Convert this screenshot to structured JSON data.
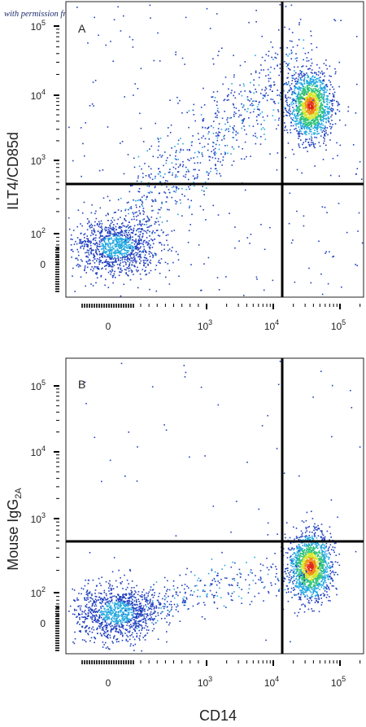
{
  "watermark": "with permission from R & D Systems",
  "chart_data": [
    {
      "type": "scatter",
      "panel_label": "A",
      "ylabel": "ILT4/CD85d",
      "xlabel": "",
      "x_scale": "biexponential",
      "y_scale": "biexponential",
      "x_ticks": [
        "0",
        "10^3",
        "10^4",
        "10^5"
      ],
      "y_ticks": [
        "0",
        "10^2",
        "10^3",
        "10^4",
        "10^5"
      ],
      "quadrant_gate": {
        "x": 15000,
        "y": 500
      },
      "populations": [
        {
          "x_center": 0,
          "y_center": 30,
          "note": "CD14- ILT4- cluster"
        },
        {
          "x_center": 40000,
          "y_center": 6000,
          "note": "CD14+ ILT4+ cluster"
        }
      ],
      "colors": [
        "#1f3fbf",
        "#22a8e0",
        "#2fc37a",
        "#d7e62c",
        "#f28a1a",
        "#e0221b"
      ]
    },
    {
      "type": "scatter",
      "panel_label": "B",
      "ylabel": "Mouse IgG",
      "ylabel_subscript": "2A",
      "xlabel": "CD14",
      "x_scale": "biexponential",
      "y_scale": "biexponential",
      "x_ticks": [
        "0",
        "10^3",
        "10^4",
        "10^5"
      ],
      "y_ticks": [
        "0",
        "10^2",
        "10^3",
        "10^4",
        "10^5"
      ],
      "quadrant_gate": {
        "x": 15000,
        "y": 500
      },
      "populations": [
        {
          "x_center": 0,
          "y_center": 30,
          "note": "CD14- isotype cluster"
        },
        {
          "x_center": 40000,
          "y_center": 200,
          "note": "CD14+ isotype cluster"
        }
      ],
      "colors": [
        "#1f3fbf",
        "#22a8e0",
        "#2fc37a",
        "#d7e62c",
        "#f28a1a",
        "#e0221b"
      ]
    }
  ]
}
